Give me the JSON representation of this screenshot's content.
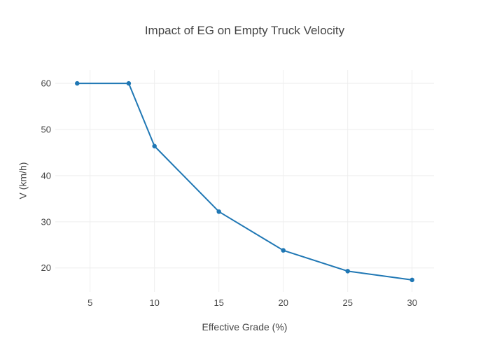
{
  "figure": {
    "background": "#ffffff"
  },
  "chart_data": {
    "type": "line",
    "mode": "lines+markers",
    "title": "Impact of EG on Empty Truck Velocity",
    "xlabel": "Effective Grade (%)",
    "ylabel": "V (km/h)",
    "x": [
      4,
      8,
      10,
      15,
      20,
      25,
      30
    ],
    "y": [
      60,
      60,
      46.4,
      32.2,
      23.8,
      19.3,
      17.4
    ],
    "xticks": [
      5,
      10,
      15,
      20,
      25,
      30
    ],
    "yticks": [
      20,
      30,
      40,
      50,
      60
    ],
    "xlim": [
      2.3,
      31.7
    ],
    "ylim": [
      14.8,
      62.9
    ],
    "grid": true,
    "legend": false,
    "line_color": "#1f77b4",
    "marker_color": "#1f77b4",
    "grid_color": "#eeeeee",
    "text_color": "#444444",
    "line_width": 2,
    "marker_size": 6.5
  }
}
